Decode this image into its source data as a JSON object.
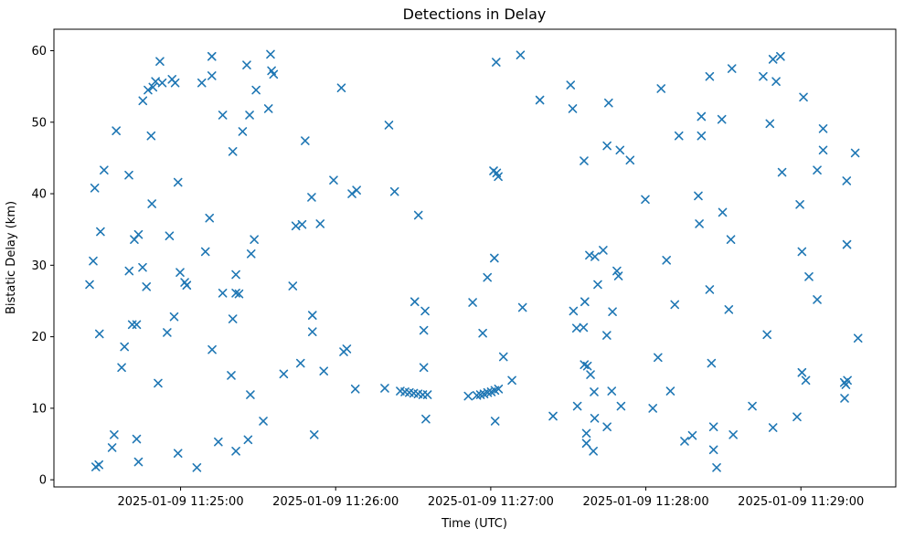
{
  "window": {
    "title": "Detections in Delay"
  },
  "chart_data": {
    "type": "scatter",
    "title": "Detections in Delay",
    "xlabel": "Time (UTC)",
    "ylabel": "Bistatic Delay (km)",
    "legend": "none",
    "grid": false,
    "marker": "x",
    "marker_color": "#1f77b4",
    "x_unit": "seconds relative to 2025-01-09 11:25:00 UTC",
    "xlim": [
      -49.0,
      276.7
    ],
    "ylim": [
      -1.0,
      63.0
    ],
    "x_ticks": [
      {
        "value": 0,
        "label": "2025-01-09 11:25:00"
      },
      {
        "value": 60,
        "label": "2025-01-09 11:26:00"
      },
      {
        "value": 120,
        "label": "2025-01-09 11:27:00"
      },
      {
        "value": 180,
        "label": "2025-01-09 11:28:00"
      },
      {
        "value": 240,
        "label": "2025-01-09 11:29:00"
      }
    ],
    "y_ticks": [
      0,
      10,
      20,
      30,
      40,
      50,
      60
    ],
    "points": [
      [
        -8,
        58.5
      ],
      [
        12.1,
        59.2
      ],
      [
        25.6,
        58
      ],
      [
        -9.7,
        55.7
      ],
      [
        -7.1,
        55.5
      ],
      [
        -3.3,
        56
      ],
      [
        -2.1,
        55.5
      ],
      [
        8.2,
        55.5
      ],
      [
        12.1,
        56.5
      ],
      [
        -12.6,
        54.5
      ],
      [
        -10.7,
        54.9
      ],
      [
        -14.6,
        53
      ],
      [
        29.2,
        54.5
      ],
      [
        16.3,
        51
      ],
      [
        26.7,
        51
      ],
      [
        24,
        48.7
      ],
      [
        -24.9,
        48.8
      ],
      [
        -11.4,
        48.1
      ],
      [
        20.2,
        45.9
      ],
      [
        -29.6,
        43.3
      ],
      [
        -20,
        42.6
      ],
      [
        34.8,
        59.5
      ],
      [
        35.2,
        57.2
      ],
      [
        36,
        56.7
      ],
      [
        62.2,
        54.8
      ],
      [
        34,
        51.9
      ],
      [
        80.6,
        49.6
      ],
      [
        48.2,
        47.4
      ],
      [
        131.5,
        59.4
      ],
      [
        122.1,
        58.4
      ],
      [
        150.9,
        55.2
      ],
      [
        185.9,
        54.7
      ],
      [
        139,
        53.1
      ],
      [
        151.7,
        51.9
      ],
      [
        165.6,
        52.7
      ],
      [
        192.8,
        48.1
      ],
      [
        165,
        46.7
      ],
      [
        170,
        46.1
      ],
      [
        173.9,
        44.7
      ],
      [
        156.1,
        44.6
      ],
      [
        121.1,
        43.2
      ],
      [
        122.3,
        42.9
      ],
      [
        122.9,
        42.4
      ],
      [
        229.2,
        58.8
      ],
      [
        232.1,
        59.2
      ],
      [
        213.3,
        57.5
      ],
      [
        204.7,
        56.4
      ],
      [
        225.4,
        56.4
      ],
      [
        230.4,
        55.7
      ],
      [
        241,
        53.5
      ],
      [
        201.5,
        50.8
      ],
      [
        209.4,
        50.4
      ],
      [
        228,
        49.8
      ],
      [
        201.5,
        48.1
      ],
      [
        248.6,
        49.1
      ],
      [
        248.6,
        46.1
      ],
      [
        261,
        45.7
      ],
      [
        232.7,
        43
      ],
      [
        246.3,
        43.3
      ],
      [
        257.7,
        41.8
      ],
      [
        -33.2,
        40.8
      ],
      [
        -1,
        41.6
      ],
      [
        -11.1,
        38.6
      ],
      [
        11.2,
        36.6
      ],
      [
        -31,
        34.7
      ],
      [
        -17.9,
        33.6
      ],
      [
        -16.3,
        34.3
      ],
      [
        -4.3,
        34.1
      ],
      [
        28.5,
        33.6
      ],
      [
        9.6,
        31.9
      ],
      [
        27.3,
        31.6
      ],
      [
        -33.8,
        30.6
      ],
      [
        -19.9,
        29.2
      ],
      [
        -14.7,
        29.7
      ],
      [
        -0.2,
        29
      ],
      [
        1.6,
        27.6
      ],
      [
        2.4,
        27.2
      ],
      [
        21.4,
        28.7
      ],
      [
        16.3,
        26.1
      ],
      [
        21.4,
        26.1
      ],
      [
        22.6,
        26
      ],
      [
        -35.2,
        27.3
      ],
      [
        -13.2,
        27
      ],
      [
        -2.5,
        22.8
      ],
      [
        20.2,
        22.5
      ],
      [
        -18.7,
        21.7
      ],
      [
        -17,
        21.7
      ],
      [
        -31.4,
        20.4
      ],
      [
        -5.2,
        20.6
      ],
      [
        59.2,
        41.9
      ],
      [
        66.3,
        40
      ],
      [
        68.1,
        40.5
      ],
      [
        50.7,
        39.5
      ],
      [
        82.8,
        40.3
      ],
      [
        92,
        37
      ],
      [
        44.6,
        35.5
      ],
      [
        47,
        35.7
      ],
      [
        54,
        35.8
      ],
      [
        43.4,
        27.1
      ],
      [
        90.6,
        24.9
      ],
      [
        94.6,
        23.6
      ],
      [
        113,
        24.8
      ],
      [
        51,
        23
      ],
      [
        51,
        20.7
      ],
      [
        94.1,
        20.9
      ],
      [
        179.8,
        39.2
      ],
      [
        121.4,
        31
      ],
      [
        158.2,
        31.4
      ],
      [
        160.3,
        31.2
      ],
      [
        163.5,
        32.1
      ],
      [
        188,
        30.7
      ],
      [
        118.7,
        28.3
      ],
      [
        168.8,
        29.2
      ],
      [
        169.4,
        28.5
      ],
      [
        161.4,
        27.3
      ],
      [
        132.3,
        24.1
      ],
      [
        156.4,
        24.9
      ],
      [
        152,
        23.6
      ],
      [
        167.1,
        23.5
      ],
      [
        191.2,
        24.5
      ],
      [
        153.2,
        21.2
      ],
      [
        155.9,
        21.3
      ],
      [
        164.9,
        20.2
      ],
      [
        116.9,
        20.5
      ],
      [
        200.3,
        39.7
      ],
      [
        209.7,
        37.4
      ],
      [
        200.7,
        35.8
      ],
      [
        239.6,
        38.5
      ],
      [
        212.9,
        33.6
      ],
      [
        257.8,
        32.9
      ],
      [
        240.4,
        31.9
      ],
      [
        243.1,
        28.4
      ],
      [
        204.7,
        26.6
      ],
      [
        246.3,
        25.2
      ],
      [
        212.1,
        23.8
      ],
      [
        226.9,
        20.3
      ],
      [
        -21.7,
        18.6
      ],
      [
        12.2,
        18.2
      ],
      [
        -22.8,
        15.7
      ],
      [
        -8.7,
        13.5
      ],
      [
        19.6,
        14.6
      ],
      [
        27,
        11.9
      ],
      [
        32,
        8.2
      ],
      [
        -25.7,
        6.3
      ],
      [
        -26.5,
        4.5
      ],
      [
        -17,
        5.7
      ],
      [
        -16.3,
        2.5
      ],
      [
        -1,
        3.7
      ],
      [
        14.6,
        5.3
      ],
      [
        21.4,
        4
      ],
      [
        26.1,
        5.6
      ],
      [
        6.3,
        1.7
      ],
      [
        -32.8,
        1.8
      ],
      [
        -31.6,
        2.1
      ],
      [
        63.1,
        17.9
      ],
      [
        64.3,
        18.3
      ],
      [
        46.4,
        16.3
      ],
      [
        39.9,
        14.8
      ],
      [
        55.4,
        15.2
      ],
      [
        67.6,
        12.7
      ],
      [
        79,
        12.8
      ],
      [
        94.1,
        15.7
      ],
      [
        85,
        12.4
      ],
      [
        86.8,
        12.3
      ],
      [
        88.5,
        12.2
      ],
      [
        90.2,
        12.1
      ],
      [
        91.9,
        12
      ],
      [
        93.7,
        11.9
      ],
      [
        95.5,
        11.9
      ],
      [
        111.3,
        11.7
      ],
      [
        94.9,
        8.5
      ],
      [
        51.7,
        6.3
      ],
      [
        124.9,
        17.2
      ],
      [
        156.2,
        16.1
      ],
      [
        157.4,
        15.9
      ],
      [
        158.6,
        14.7
      ],
      [
        128.2,
        13.9
      ],
      [
        114.6,
        11.8
      ],
      [
        116,
        11.9
      ],
      [
        117.4,
        12
      ],
      [
        118.8,
        12.2
      ],
      [
        120.2,
        12.3
      ],
      [
        121.6,
        12.5
      ],
      [
        123,
        12.7
      ],
      [
        160,
        12.3
      ],
      [
        166.8,
        12.4
      ],
      [
        189.5,
        12.4
      ],
      [
        184.7,
        17.1
      ],
      [
        153.5,
        10.3
      ],
      [
        170.4,
        10.3
      ],
      [
        182.7,
        10
      ],
      [
        144.1,
        8.9
      ],
      [
        121.7,
        8.2
      ],
      [
        160.2,
        8.6
      ],
      [
        165,
        7.4
      ],
      [
        157,
        6.5
      ],
      [
        157,
        5.1
      ],
      [
        159.7,
        4
      ],
      [
        205.4,
        16.3
      ],
      [
        240.4,
        15
      ],
      [
        241.9,
        13.9
      ],
      [
        256.8,
        13.6
      ],
      [
        258,
        13.9
      ],
      [
        257.4,
        13.3
      ],
      [
        256.9,
        11.4
      ],
      [
        221.2,
        10.3
      ],
      [
        238.5,
        8.8
      ],
      [
        206.2,
        7.4
      ],
      [
        213.8,
        6.3
      ],
      [
        229.2,
        7.3
      ],
      [
        198,
        6.2
      ],
      [
        195,
        5.4
      ],
      [
        206.2,
        4.2
      ],
      [
        207.4,
        1.7
      ],
      [
        262.1,
        19.8
      ]
    ]
  }
}
